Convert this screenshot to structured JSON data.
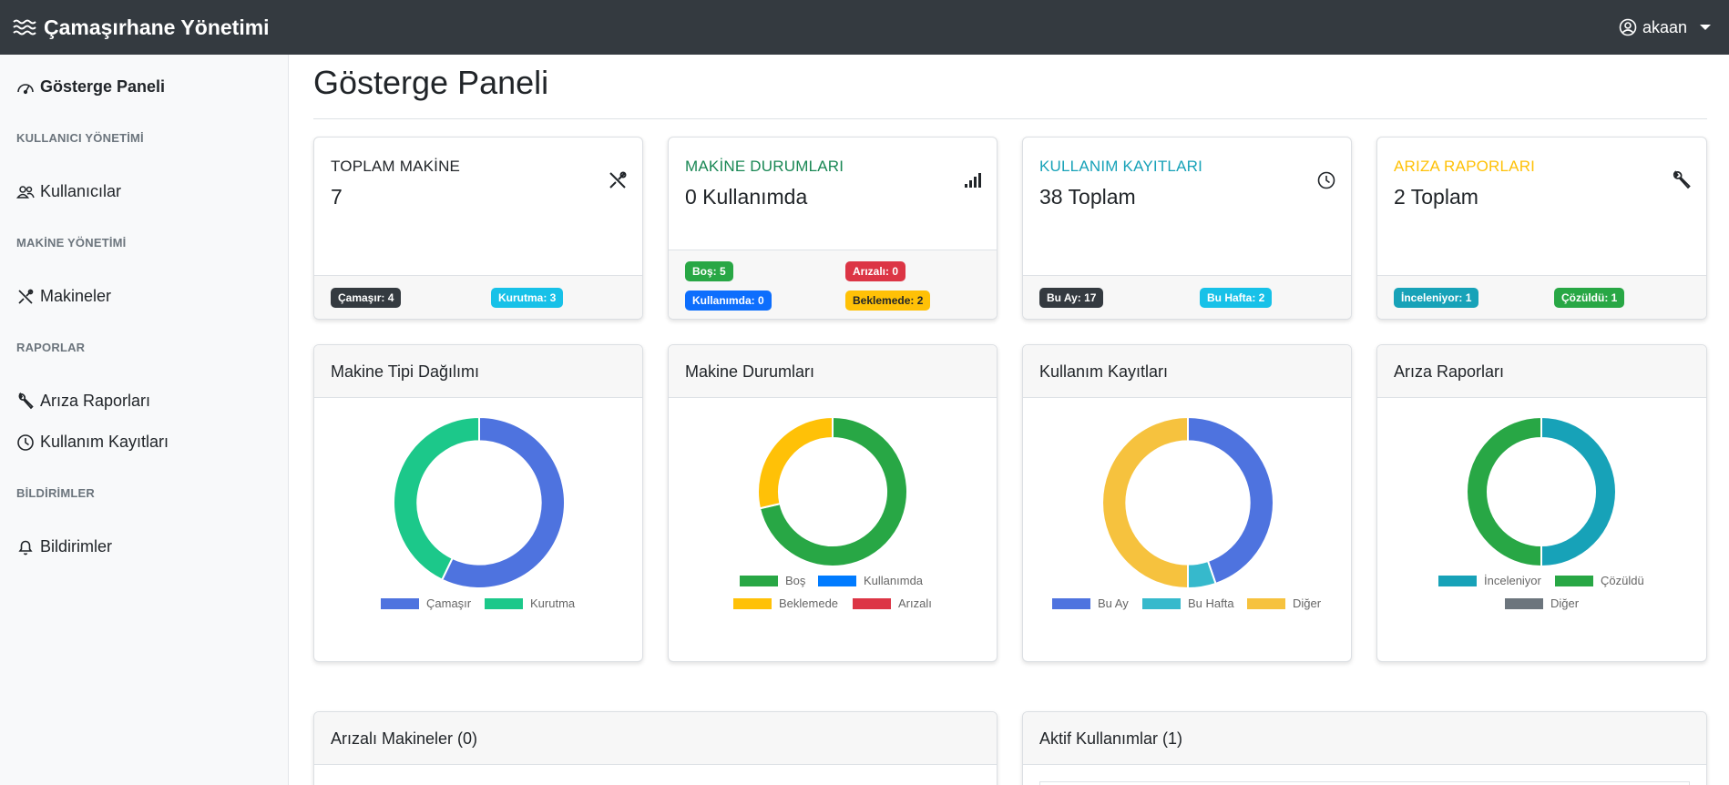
{
  "navbar": {
    "brand": "Çamaşırhane Yönetimi",
    "brand_icon": "water-waves-icon",
    "user": "akaan",
    "user_icon": "person-circle-icon"
  },
  "sidebar": {
    "dashboard": "Gösterge Paneli",
    "section_users": "KULLANICI YÖNETİMİ",
    "users": "Kullanıcılar",
    "section_machines": "MAKİNE YÖNETİMİ",
    "machines": "Makineler",
    "section_reports": "RAPORLAR",
    "fault_reports": "Arıza Raporları",
    "usage_logs": "Kullanım Kayıtları",
    "section_notifications": "BİLDİRİMLER",
    "notifications": "Bildirimler"
  },
  "page": {
    "title": "Gösterge Paneli"
  },
  "stats": {
    "total_machines": {
      "title": "TOPLAM MAKİNE",
      "value": "7",
      "badge1": "Çamaşır: 4",
      "badge2": "Kurutma: 3",
      "color": "#212529"
    },
    "machine_status": {
      "title": "MAKİNE DURUMLARI",
      "value": "0 Kullanımda",
      "badge_idle": "Boş: 5",
      "badge_faulty": "Arızalı: 0",
      "badge_inuse": "Kullanımda: 0",
      "badge_waiting": "Beklemede: 2",
      "color": "#198754"
    },
    "usage_logs": {
      "title": "KULLANIM KAYITLARI",
      "value": "38 Toplam",
      "badge1": "Bu Ay: 17",
      "badge2": "Bu Hafta: 2",
      "color": "#17a2b8"
    },
    "fault_reports": {
      "title": "ARIZA RAPORLARI",
      "value": "2 Toplam",
      "badge1": "İnceleniyor: 1",
      "badge2": "Çözüldü: 1",
      "color": "#ffc107"
    }
  },
  "charts": {
    "machine_type": {
      "title": "Makine Tipi Dağılımı",
      "legend": [
        "Çamaşır",
        "Kurutma"
      ]
    },
    "machine_status": {
      "title": "Makine Durumları",
      "legend": [
        "Boş",
        "Kullanımda",
        "Beklemede",
        "Arızalı"
      ]
    },
    "usage": {
      "title": "Kullanım Kayıtları",
      "legend": [
        "Bu Ay",
        "Bu Hafta",
        "Diğer"
      ]
    },
    "faults": {
      "title": "Arıza Raporları",
      "legend": [
        "İnceleniyor",
        "Çözüldü",
        "Diğer"
      ]
    }
  },
  "chart_data": [
    {
      "type": "pie",
      "title": "Makine Tipi Dağılımı",
      "categories": [
        "Çamaşır",
        "Kurutma"
      ],
      "values": [
        4,
        3
      ],
      "colors": [
        "#4e73df",
        "#1cc88a"
      ]
    },
    {
      "type": "pie",
      "title": "Makine Durumları",
      "categories": [
        "Boş",
        "Kullanımda",
        "Beklemede",
        "Arızalı"
      ],
      "values": [
        5,
        0,
        2,
        0
      ],
      "colors": [
        "#28a745",
        "#007bff",
        "#ffc107",
        "#dc3545"
      ]
    },
    {
      "type": "pie",
      "title": "Kullanım Kayıtları",
      "categories": [
        "Bu Ay",
        "Bu Hafta",
        "Diğer"
      ],
      "values": [
        17,
        2,
        19
      ],
      "colors": [
        "#4e73df",
        "#36b9cc",
        "#f6c23e"
      ]
    },
    {
      "type": "pie",
      "title": "Arıza Raporları",
      "categories": [
        "İnceleniyor",
        "Çözüldü",
        "Diğer"
      ],
      "values": [
        1,
        1,
        0
      ],
      "colors": [
        "#17a2b8",
        "#28a745",
        "#6c757d"
      ]
    }
  ],
  "bottom": {
    "faulty_machines": "Arızalı Makineler (0)",
    "active_usages": "Aktif Kullanımlar (1)"
  }
}
